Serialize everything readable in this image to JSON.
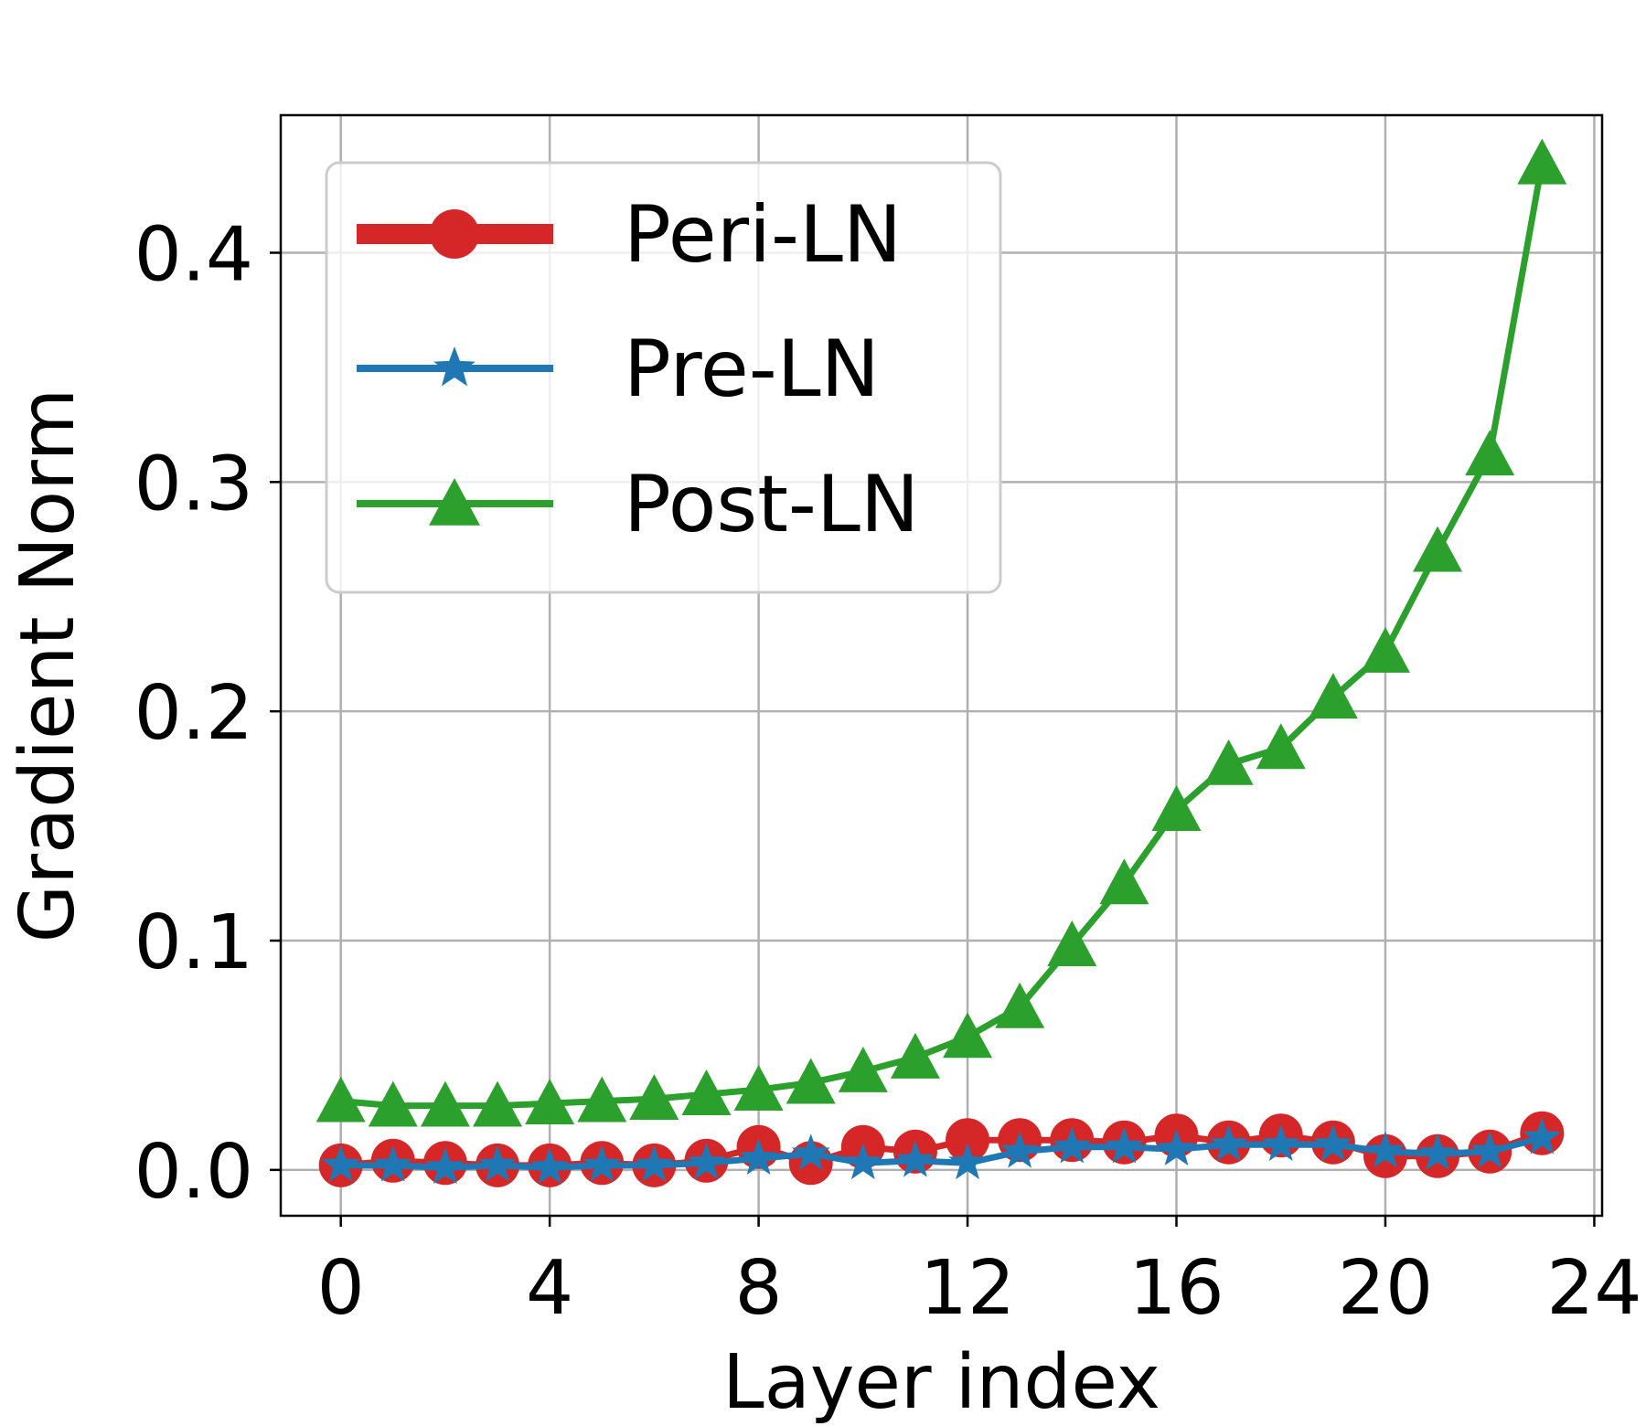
{
  "chart_data": {
    "type": "line",
    "title": "",
    "xlabel": "Layer index",
    "ylabel": "Gradient Norm",
    "xlim": [
      -1.15,
      24.15
    ],
    "ylim": [
      -0.02,
      0.46
    ],
    "xticks": [
      0,
      4,
      8,
      12,
      16,
      20,
      24
    ],
    "xtick_labels": [
      "0",
      "4",
      "8",
      "12",
      "16",
      "20",
      "24"
    ],
    "yticks": [
      0.0,
      0.1,
      0.2,
      0.3,
      0.4
    ],
    "ytick_labels": [
      "0.0",
      "0.1",
      "0.2",
      "0.3",
      "0.4"
    ],
    "grid": true,
    "legend_position": "top-left",
    "x": [
      0,
      1,
      2,
      3,
      4,
      5,
      6,
      7,
      8,
      9,
      10,
      11,
      12,
      13,
      14,
      15,
      16,
      17,
      18,
      19,
      20,
      21,
      22,
      23
    ],
    "series": [
      {
        "name": "Peri-LN",
        "color": "#d62728",
        "marker": "circle",
        "values": [
          0.002,
          0.004,
          0.003,
          0.002,
          0.002,
          0.003,
          0.002,
          0.004,
          0.01,
          0.003,
          0.01,
          0.008,
          0.013,
          0.013,
          0.013,
          0.012,
          0.015,
          0.012,
          0.015,
          0.012,
          0.006,
          0.006,
          0.008,
          0.016
        ]
      },
      {
        "name": "Pre-LN",
        "color": "#1f77b4",
        "marker": "star",
        "values": [
          0.002,
          0.002,
          0.001,
          0.002,
          0.001,
          0.002,
          0.002,
          0.003,
          0.005,
          0.007,
          0.003,
          0.004,
          0.003,
          0.008,
          0.01,
          0.01,
          0.009,
          0.011,
          0.011,
          0.011,
          0.008,
          0.007,
          0.008,
          0.014
        ]
      },
      {
        "name": "Post-LN",
        "color": "#2ca02c",
        "marker": "triangle",
        "values": [
          0.03,
          0.028,
          0.028,
          0.028,
          0.029,
          0.03,
          0.031,
          0.033,
          0.035,
          0.038,
          0.043,
          0.049,
          0.058,
          0.071,
          0.098,
          0.125,
          0.157,
          0.177,
          0.184,
          0.206,
          0.226,
          0.27,
          0.312,
          0.439
        ]
      }
    ]
  }
}
